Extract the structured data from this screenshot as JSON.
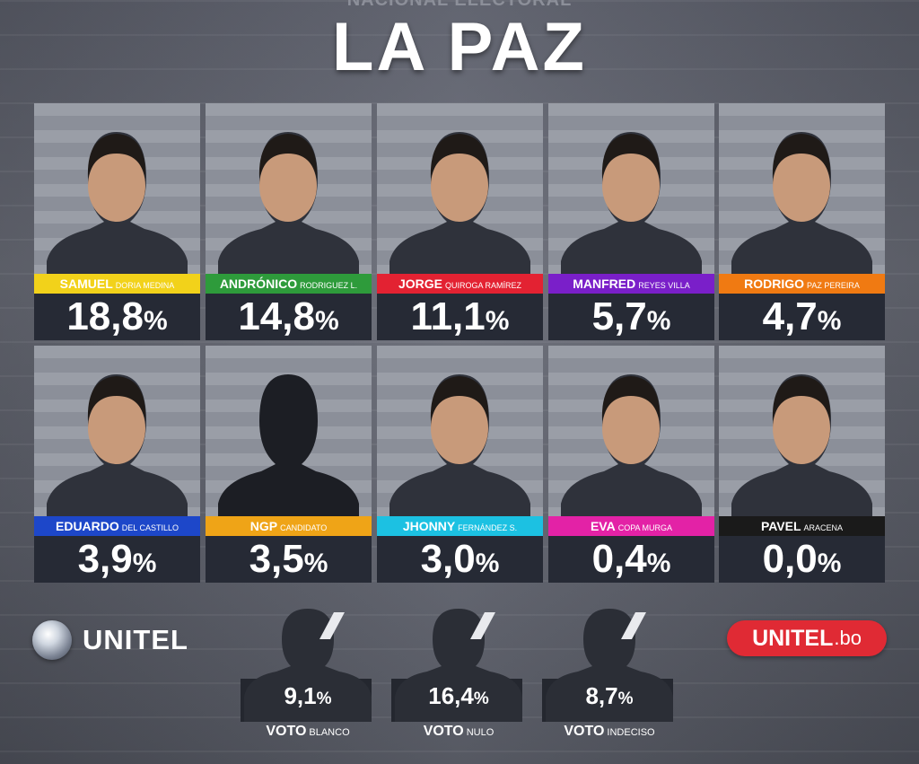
{
  "header": {
    "top_text": "NACIONAL ELECTORAL",
    "title": "LA PAZ"
  },
  "candidates": [
    {
      "first": "SAMUEL",
      "last": "DORIA MEDINA",
      "percent": "18,8",
      "bar_color": "#f2d21a",
      "first_color": "#ffffff"
    },
    {
      "first": "ANDRÓNICO",
      "last": "RODRIGUEZ L.",
      "percent": "14,8",
      "bar_color": "#2e9b3b",
      "first_color": "#ffffff"
    },
    {
      "first": "JORGE",
      "last": "QUIROGA RAMÍREZ",
      "percent": "11,1",
      "bar_color": "#e32232",
      "first_color": "#ffffff"
    },
    {
      "first": "MANFRED",
      "last": "REYES VILLA",
      "percent": "5,7",
      "bar_color": "#7a1fc9",
      "first_color": "#ffffff"
    },
    {
      "first": "RODRIGO",
      "last": "PAZ PEREIRA",
      "percent": "4,7",
      "bar_color": "#f07a12",
      "first_color": "#ffffff"
    },
    {
      "first": "EDUARDO",
      "last": "DEL CASTILLO",
      "percent": "3,9",
      "bar_color": "#1d47c9",
      "first_color": "#ffffff"
    },
    {
      "first": "NGP",
      "last": "CANDIDATO",
      "percent": "3,5",
      "bar_color": "#efa417",
      "first_color": "#ffffff"
    },
    {
      "first": "JHONNY",
      "last": "FERNÁNDEZ S.",
      "percent": "3,0",
      "bar_color": "#1cc1e2",
      "first_color": "#ffffff"
    },
    {
      "first": "EVA",
      "last": "COPA MURGA",
      "percent": "0,4",
      "bar_color": "#e322a6",
      "first_color": "#ffffff"
    },
    {
      "first": "PAVEL",
      "last": "ARACENA",
      "percent": "0,0",
      "bar_color": "#1a1a1a",
      "first_color": "#ffffff"
    }
  ],
  "percent_sign": "%",
  "logos": {
    "left": "UNITEL",
    "right_main": "UNITEL",
    "right_sub": ".bo"
  },
  "votes": [
    {
      "percent": "9,1",
      "label_main": "VOTO",
      "label_sub": "BLANCO"
    },
    {
      "percent": "16,4",
      "label_main": "VOTO",
      "label_sub": "NULO"
    },
    {
      "percent": "8,7",
      "label_main": "VOTO",
      "label_sub": "INDECISO"
    }
  ],
  "colors": {
    "card_bg": "#2a2e39",
    "logo_red": "#e02a34"
  }
}
